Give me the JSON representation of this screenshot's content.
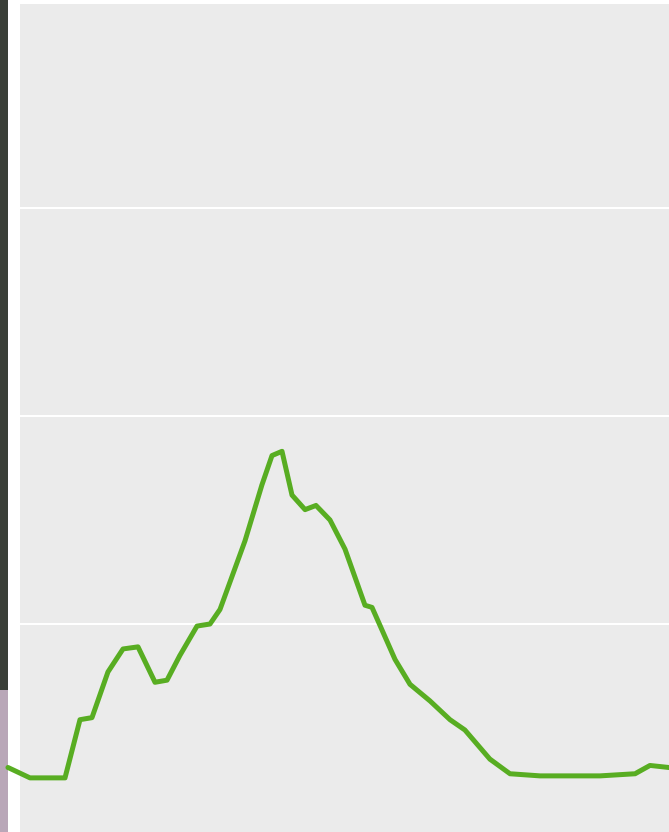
{
  "chart_data": {
    "type": "line",
    "x": [
      8,
      30,
      65,
      80,
      92,
      108,
      123,
      138,
      155,
      167,
      180,
      197,
      210,
      220,
      245,
      262,
      272,
      282,
      292,
      305,
      316,
      330,
      345,
      365,
      372,
      395,
      410,
      430,
      450,
      465,
      490,
      510,
      540,
      575,
      600,
      635,
      650,
      669
    ],
    "series": [
      {
        "color": "#58ad22",
        "values": [
          0.31,
          0.26,
          0.26,
          0.54,
          0.55,
          0.77,
          0.88,
          0.89,
          0.72,
          0.73,
          0.85,
          0.99,
          1.0,
          1.07,
          1.4,
          1.67,
          1.81,
          1.83,
          1.62,
          1.55,
          1.57,
          1.5,
          1.36,
          1.09,
          1.08,
          0.83,
          0.71,
          0.63,
          0.54,
          0.49,
          0.35,
          0.28,
          0.27,
          0.27,
          0.27,
          0.28,
          0.32,
          0.31
        ]
      }
    ],
    "xlim": [
      0,
      669
    ],
    "ylim": [
      0,
      4
    ],
    "yticks": [
      1,
      2,
      3
    ],
    "grid": true
  }
}
